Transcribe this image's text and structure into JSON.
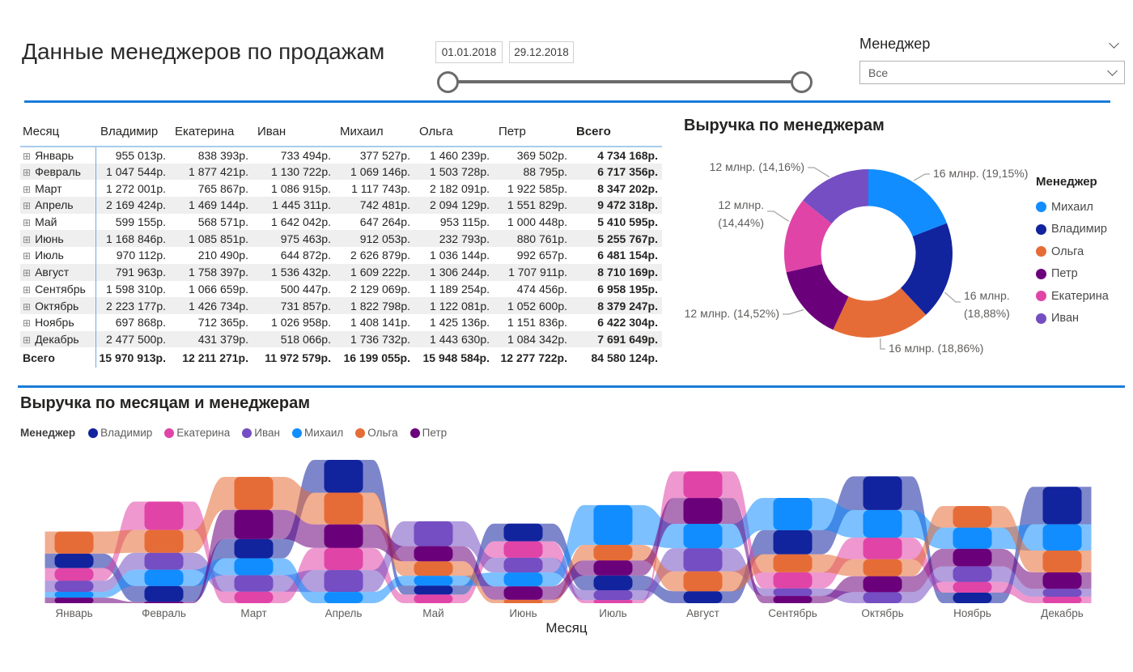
{
  "page": {
    "title": "Данные менеджеров по продажам"
  },
  "date_slider": {
    "start": "01.01.2018",
    "end": "29.12.2018"
  },
  "slicer": {
    "title": "Менеджер",
    "value": "Все"
  },
  "table": {
    "columns": [
      "Месяц",
      "Владимир",
      "Екатерина",
      "Иван",
      "Михаил",
      "Ольга",
      "Петр",
      "Всего"
    ],
    "rows": [
      {
        "month": "Январь",
        "cells": [
          "955 013р.",
          "838 393р.",
          "733 494р.",
          "377 527р.",
          "1 460 239р.",
          "369 502р.",
          "4 734 168р."
        ]
      },
      {
        "month": "Февраль",
        "cells": [
          "1 047 544р.",
          "1 877 421р.",
          "1 130 722р.",
          "1 069 146р.",
          "1 503 728р.",
          "88 795р.",
          "6 717 356р."
        ]
      },
      {
        "month": "Март",
        "cells": [
          "1 272 001р.",
          "765 867р.",
          "1 086 915р.",
          "1 117 743р.",
          "2 182 091р.",
          "1 922 585р.",
          "8 347 202р."
        ]
      },
      {
        "month": "Апрель",
        "cells": [
          "2 169 424р.",
          "1 469 144р.",
          "1 445 311р.",
          "742 481р.",
          "2 094 129р.",
          "1 551 829р.",
          "9 472 318р."
        ]
      },
      {
        "month": "Май",
        "cells": [
          "599 155р.",
          "568 571р.",
          "1 642 042р.",
          "647 264р.",
          "953 115р.",
          "1 000 448р.",
          "5 410 595р."
        ]
      },
      {
        "month": "Июнь",
        "cells": [
          "1 168 846р.",
          "1 085 851р.",
          "975 463р.",
          "912 053р.",
          "232 793р.",
          "880 761р.",
          "5 255 767р."
        ]
      },
      {
        "month": "Июль",
        "cells": [
          "970 112р.",
          "210 490р.",
          "644 872р.",
          "2 626 879р.",
          "1 036 144р.",
          "992 657р.",
          "6 481 154р."
        ]
      },
      {
        "month": "Август",
        "cells": [
          "791 963р.",
          "1 758 397р.",
          "1 536 432р.",
          "1 609 222р.",
          "1 306 244р.",
          "1 707 911р.",
          "8 710 169р."
        ]
      },
      {
        "month": "Сентябрь",
        "cells": [
          "1 598 310р.",
          "1 066 659р.",
          "500 447р.",
          "2 129 069р.",
          "1 189 254р.",
          "474 456р.",
          "6 958 195р."
        ]
      },
      {
        "month": "Октябрь",
        "cells": [
          "2 223 177р.",
          "1 426 734р.",
          "731 857р.",
          "1 822 798р.",
          "1 122 081р.",
          "1 052 600р.",
          "8 379 247р."
        ]
      },
      {
        "month": "Ноябрь",
        "cells": [
          "697 868р.",
          "712 365р.",
          "1 026 958р.",
          "1 408 141р.",
          "1 425 136р.",
          "1 151 836р.",
          "6 422 304р."
        ]
      },
      {
        "month": "Декабрь",
        "cells": [
          "2 477 500р.",
          "431 379р.",
          "518 066р.",
          "1 736 732р.",
          "1 443 630р.",
          "1 084 342р.",
          "7 691 649р."
        ]
      }
    ],
    "total_row": {
      "label": "Всего",
      "cells": [
        "15 970 913р.",
        "12 211 271р.",
        "11 972 579р.",
        "16 199 055р.",
        "15 948 584р.",
        "12 277 722р.",
        "84 580 124р."
      ]
    }
  },
  "chart_data": [
    {
      "type": "pie",
      "subtype": "donut",
      "title": "Выручка по менеджерам",
      "legend_title": "Менеджер",
      "legend_position": "right",
      "slices": [
        {
          "name": "Михаил",
          "color": "#118DFF",
          "value": 16199055,
          "percent": 19.15,
          "label_lines": [
            "16 млнр. (19,15%)"
          ]
        },
        {
          "name": "Владимир",
          "color": "#12239E",
          "value": 15970913,
          "percent": 18.88,
          "label_lines": [
            "16 млнр.",
            "(18,88%)"
          ]
        },
        {
          "name": "Ольга",
          "color": "#E66C37",
          "value": 15948584,
          "percent": 18.86,
          "label_lines": [
            "16 млнр. (18,86%)"
          ]
        },
        {
          "name": "Петр",
          "color": "#6B007B",
          "value": 12277722,
          "percent": 14.52,
          "label_lines": [
            "12 млнр. (14,52%)"
          ]
        },
        {
          "name": "Екатерина",
          "color": "#E044A7",
          "value": 12211271,
          "percent": 14.44,
          "label_lines": [
            "12 млнр.",
            "(14,44%)"
          ]
        },
        {
          "name": "Иван",
          "color": "#744EC2",
          "value": 11972579,
          "percent": 14.16,
          "label_lines": [
            "12 млнр. (14,16%)"
          ]
        }
      ]
    },
    {
      "type": "area",
      "subtype": "ribbon",
      "title": "Выручка по месяцам и менеджерам",
      "legend_title": "Менеджер",
      "xlabel": "Месяц",
      "categories": [
        "Январь",
        "Февраль",
        "Март",
        "Апрель",
        "Май",
        "Июнь",
        "Июль",
        "Август",
        "Сентябрь",
        "Октябрь",
        "Ноябрь",
        "Декабрь"
      ],
      "series": [
        {
          "name": "Владимир",
          "color": "#12239E",
          "values": [
            955013,
            1047544,
            1272001,
            2169424,
            599155,
            1168846,
            970112,
            791963,
            1598310,
            2223177,
            697868,
            2477500
          ]
        },
        {
          "name": "Екатерина",
          "color": "#E044A7",
          "values": [
            838393,
            1877421,
            765867,
            1469144,
            568571,
            1085851,
            210490,
            1758397,
            1066659,
            1426734,
            712365,
            431379
          ]
        },
        {
          "name": "Иван",
          "color": "#744EC2",
          "values": [
            733494,
            1130722,
            1086915,
            1445311,
            1642042,
            975463,
            644872,
            1536432,
            500447,
            731857,
            1026958,
            518066
          ]
        },
        {
          "name": "Михаил",
          "color": "#118DFF",
          "values": [
            377527,
            1069146,
            1117743,
            742481,
            647264,
            912053,
            2626879,
            1609222,
            2129069,
            1822798,
            1408141,
            1736732
          ]
        },
        {
          "name": "Ольга",
          "color": "#E66C37",
          "values": [
            1460239,
            1503728,
            2182091,
            2094129,
            953115,
            232793,
            1036144,
            1306244,
            1189254,
            1122081,
            1425136,
            1443630
          ]
        },
        {
          "name": "Петр",
          "color": "#6B007B",
          "values": [
            369502,
            88795,
            1922585,
            1551829,
            1000448,
            880761,
            992657,
            1707911,
            474456,
            1052600,
            1151836,
            1084342
          ]
        }
      ]
    }
  ]
}
